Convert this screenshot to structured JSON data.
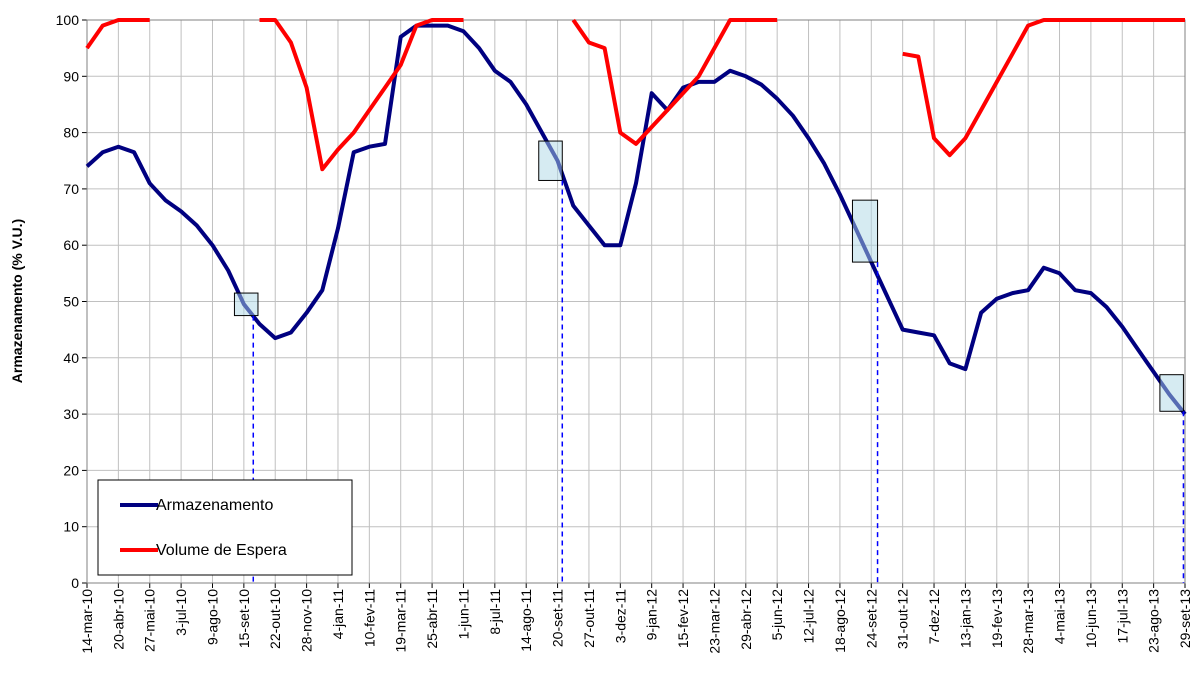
{
  "chart_data": {
    "type": "line",
    "ylabel": "Armazenamento (% V.U.)",
    "categories": [
      "14-mar-10",
      null,
      "20-abr-10",
      null,
      "27-mai-10",
      null,
      "3-jul-10",
      null,
      "9-ago-10",
      null,
      "15-set-10",
      null,
      "22-out-10",
      null,
      "28-nov-10",
      null,
      "4-jan-11",
      null,
      "10-fev-11",
      null,
      "19-mar-11",
      null,
      "25-abr-11",
      null,
      "1-jun-11",
      null,
      "8-jul-11",
      null,
      "14-ago-11",
      null,
      "20-set-11",
      null,
      "27-out-11",
      null,
      "3-dez-11",
      null,
      "9-jan-12",
      null,
      "15-fev-12",
      null,
      "23-mar-12",
      null,
      "29-abr-12",
      null,
      "5-jun-12",
      null,
      "12-jul-12",
      null,
      "18-ago-12",
      null,
      "24-set-12",
      null,
      "31-out-12",
      null,
      "7-dez-12",
      null,
      "13-jan-13",
      null,
      "19-fev-13",
      null,
      "28-mar-13",
      null,
      "4-mai-13",
      null,
      "10-jun-13",
      null,
      "17-jul-13",
      null,
      "23-ago-13",
      null,
      "29-set-13"
    ],
    "series": [
      {
        "name": "Armazenamento",
        "color": "#000080",
        "values": [
          74,
          76.5,
          77.5,
          76.5,
          71,
          68,
          66,
          63.5,
          60,
          55.5,
          49.5,
          46,
          43.5,
          44.5,
          48,
          52,
          63,
          76.5,
          77.5,
          78,
          97,
          99,
          99,
          99,
          98,
          95,
          91,
          89,
          85,
          80,
          75,
          67,
          63.5,
          60,
          60,
          71,
          87,
          84,
          88,
          89,
          89,
          91,
          90,
          88.5,
          86,
          83,
          79,
          74.5,
          69,
          63,
          57,
          51,
          45,
          44.5,
          44,
          39,
          38,
          48,
          50.5,
          51.5,
          52,
          56,
          55,
          52,
          51.5,
          49,
          45.5,
          41.5,
          37.5,
          33.5,
          30
        ]
      },
      {
        "name": "Volume de Espera",
        "color": "#ff0000",
        "values": [
          95,
          99,
          100,
          100,
          100,
          null,
          null,
          null,
          null,
          null,
          null,
          100,
          100,
          96,
          88,
          73.5,
          77,
          80,
          84,
          88,
          92,
          99,
          100,
          100,
          100,
          null,
          null,
          null,
          null,
          null,
          null,
          100,
          96,
          95,
          80,
          78,
          81,
          84,
          87,
          90,
          95,
          100,
          100,
          100,
          100,
          null,
          null,
          null,
          null,
          null,
          null,
          null,
          94,
          93.5,
          79,
          76,
          79,
          84,
          89,
          94,
          99,
          100,
          100,
          100,
          100,
          100,
          100,
          100,
          100,
          100,
          100
        ]
      }
    ],
    "highlights": [
      {
        "x": [
          9.4,
          10.9
        ],
        "y": [
          47.5,
          51.5
        ],
        "line": 10.6
      },
      {
        "x": [
          28.8,
          30.3
        ],
        "y": [
          71.5,
          78.5
        ],
        "line": 30.3
      },
      {
        "x": [
          48.8,
          50.4
        ],
        "y": [
          57,
          68
        ],
        "line": 50.4
      },
      {
        "x": [
          68.4,
          69.9
        ],
        "y": [
          30.5,
          37
        ],
        "line": 69.9
      }
    ],
    "ylim": [
      0,
      100
    ],
    "yticks": [
      0,
      10,
      20,
      30,
      40,
      50,
      60,
      70,
      80,
      90,
      100
    ],
    "grid": true,
    "legend": "lower left"
  }
}
